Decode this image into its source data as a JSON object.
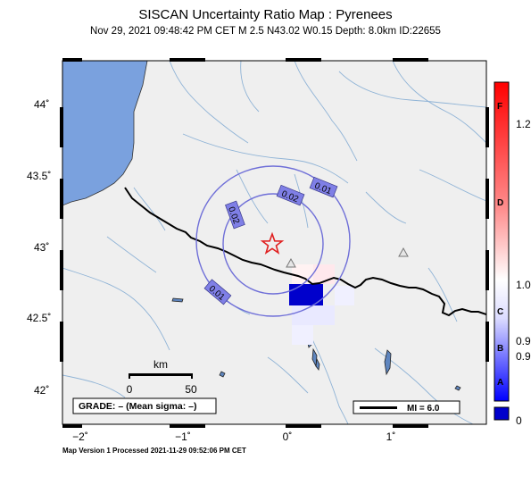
{
  "map": {
    "title": "SISCAN Uncertainty Ratio Map : Pyrenees",
    "subtitle": "Nov 29, 2021 09:48:42 PM CET   M 2.5   N43.02 W0.15   Depth: 8.0km   ID:22655",
    "footer": "Map Version 1 Processed 2021-11-29 09:52:06 PM CET",
    "lat_labels": [
      "44˚",
      "43.5˚",
      "43˚",
      "42.5˚",
      "42˚"
    ],
    "lon_labels": [
      "−2˚",
      "−1˚",
      "0˚",
      "1˚"
    ],
    "contour_labels": [
      "0.01",
      "0.02",
      "0.02",
      "0.01"
    ],
    "scale_bar": {
      "unit": "km",
      "left": "0",
      "right": "50"
    },
    "grade_text": "GRADE: – (Mean sigma: –)",
    "mi_legend": "MI = 6.0",
    "colorbar": {
      "letters": [
        "F",
        "D",
        "C",
        "B",
        "A"
      ],
      "values": [
        "1.2",
        "1.0",
        "0.9",
        "0.9",
        "0"
      ]
    },
    "colors": {
      "sea": "#7aa1de",
      "land": "#efefef",
      "river": "#8fb3d6",
      "border": "#000000",
      "contour": "#6f6fd8",
      "epicenter": "#e02020",
      "high_block": "#0000cc"
    }
  }
}
